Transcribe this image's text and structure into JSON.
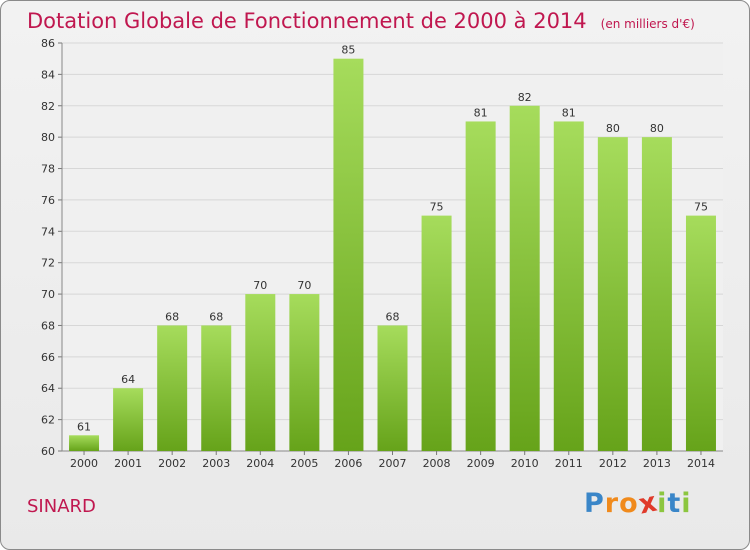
{
  "header": {
    "title": "Dotation Globale de Fonctionnement de 2000 à 2014",
    "subtitle": "(en milliers d'€)"
  },
  "commune": "SINARD",
  "logo": {
    "text": "Proxiti",
    "letters": [
      {
        "ch": "P",
        "color": "#3a86c8"
      },
      {
        "ch": "r",
        "color": "#f08a1c"
      },
      {
        "ch": "o",
        "color": "#f08a1c"
      },
      {
        "ch": "x",
        "color": "#e03a2a"
      },
      {
        "ch": "i",
        "color": "#8cc63f"
      },
      {
        "ch": "t",
        "color": "#3a86c8"
      },
      {
        "ch": "i",
        "color": "#8cc63f"
      }
    ]
  },
  "colors": {
    "bar_light": "#a6dc5c",
    "bar_dark": "#66a31a",
    "title": "#c0174f",
    "grid": "#d7d7d7"
  },
  "chart_data": {
    "type": "bar",
    "categories": [
      "2000",
      "2001",
      "2002",
      "2003",
      "2004",
      "2005",
      "2006",
      "2007",
      "2008",
      "2009",
      "2010",
      "2011",
      "2012",
      "2013",
      "2014"
    ],
    "values": [
      61,
      64,
      68,
      68,
      70,
      70,
      85,
      68,
      75,
      81,
      82,
      81,
      80,
      80,
      75
    ],
    "ylim": [
      60,
      86
    ],
    "yticks": [
      60,
      62,
      64,
      66,
      68,
      70,
      72,
      74,
      76,
      78,
      80,
      82,
      84,
      86
    ],
    "grid": true,
    "data_labels": true
  }
}
